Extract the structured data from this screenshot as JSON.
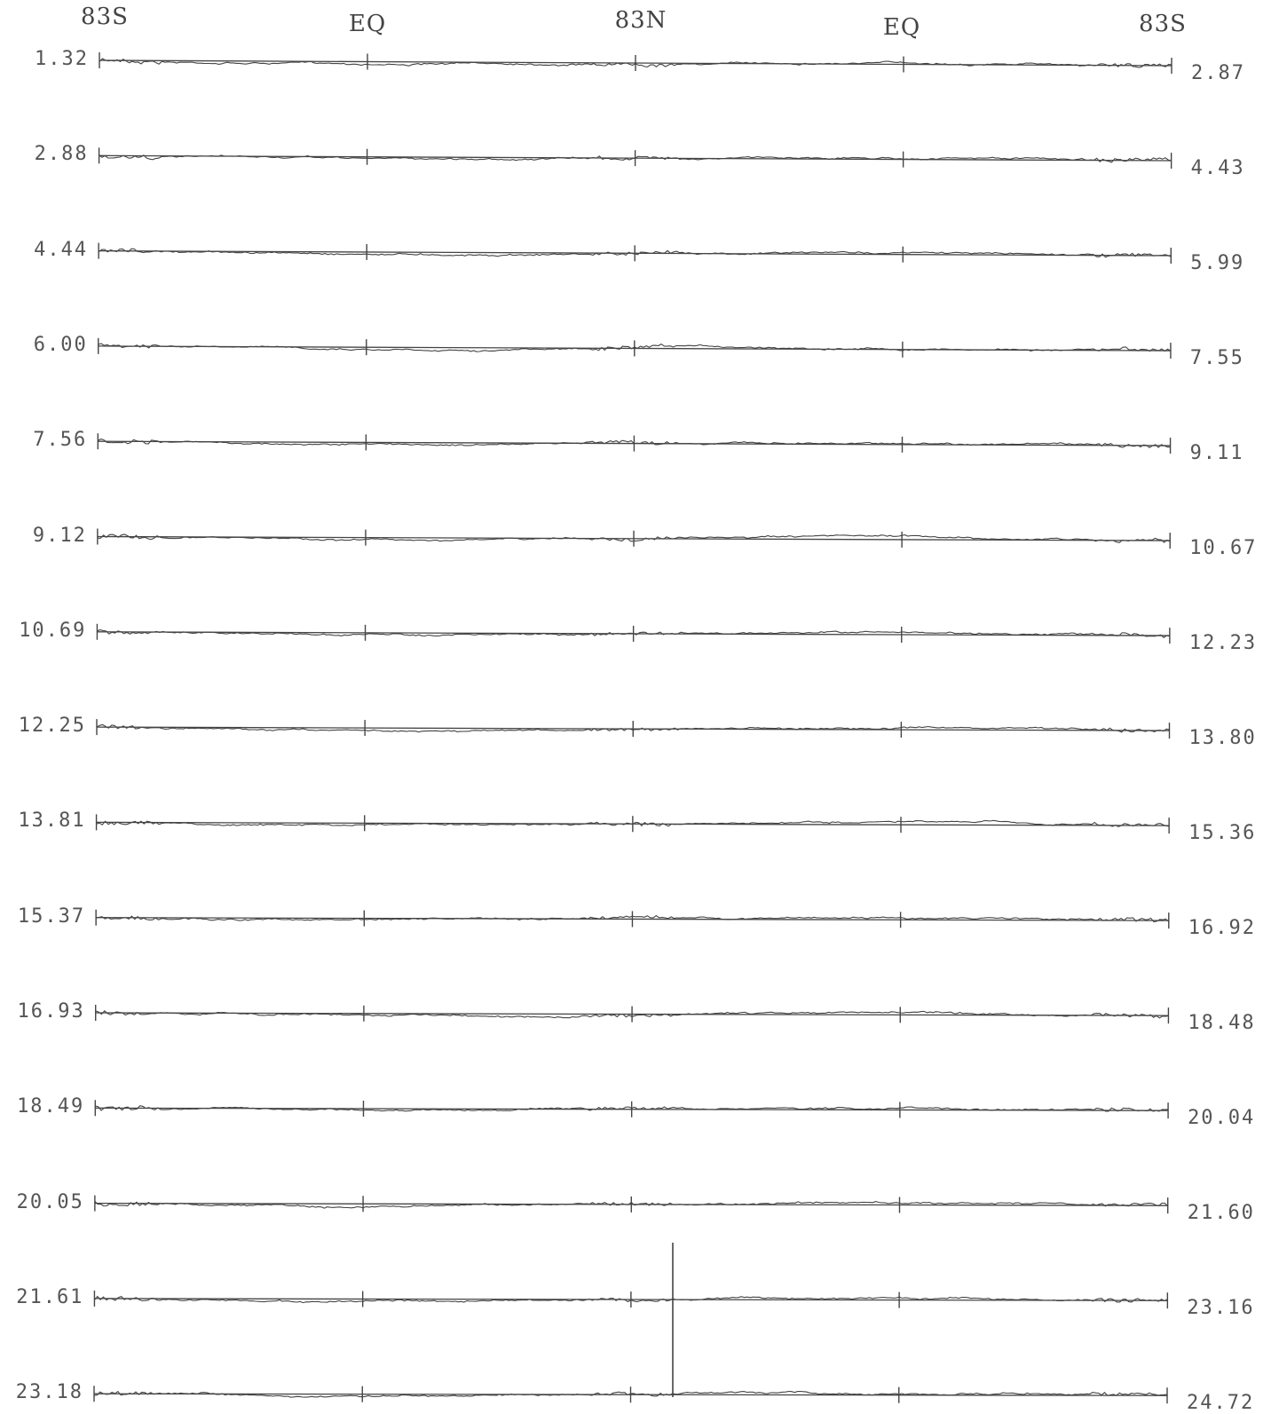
{
  "chart_data": {
    "type": "line",
    "header_labels": [
      "83S",
      "EQ",
      "83N",
      "EQ",
      "83S"
    ],
    "left_labels": [
      "1.32",
      "2.88",
      "4.44",
      "6.00",
      "7.56",
      "9.12",
      "10.69",
      "12.25",
      "13.81",
      "15.37",
      "16.93",
      "18.49",
      "20.05",
      "21.61",
      "23.18"
    ],
    "right_labels": [
      "2.87",
      "4.43",
      "5.99",
      "7.55",
      "9.11",
      "10.67",
      "12.23",
      "13.80",
      "15.36",
      "16.92",
      "18.48",
      "20.04",
      "21.60",
      "23.16",
      "24.72"
    ],
    "line_color": "#444444",
    "grid": false,
    "legend": "none"
  }
}
